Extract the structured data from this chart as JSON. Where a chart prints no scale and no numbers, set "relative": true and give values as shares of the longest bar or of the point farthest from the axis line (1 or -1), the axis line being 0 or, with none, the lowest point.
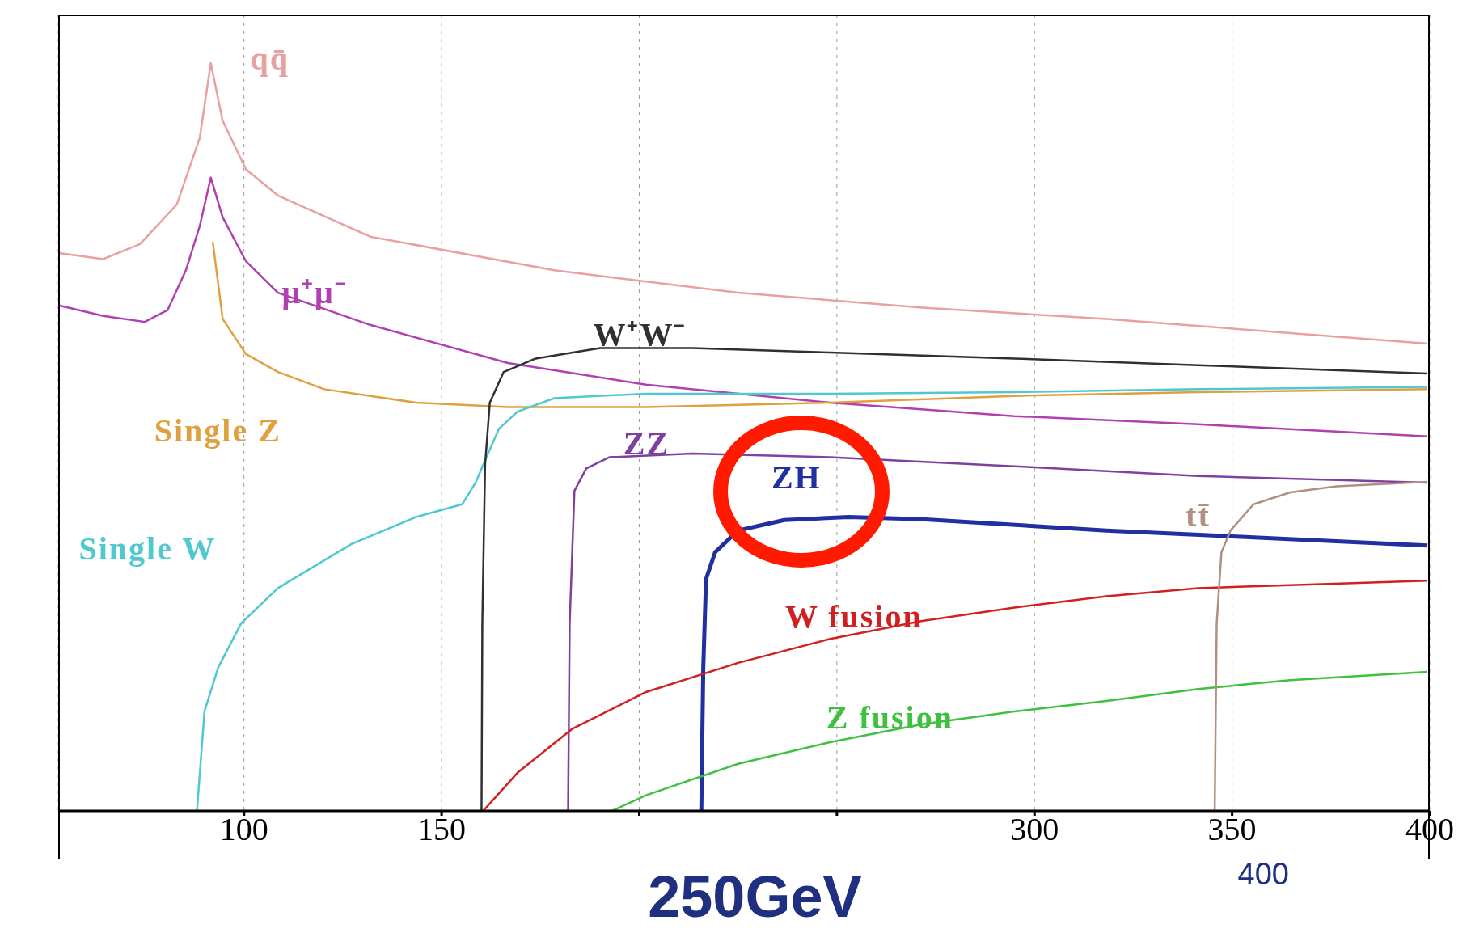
{
  "chart_data": {
    "type": "line",
    "relative": true,
    "legend": false,
    "marker": "none",
    "grid": "x",
    "xlim": [
      53,
      400
    ],
    "xticks": [
      100,
      150,
      {
        "value": 200,
        "label": null
      },
      {
        "value": 250,
        "label": null
      },
      300,
      350,
      400
    ],
    "annotations": [
      "250GeV",
      "400"
    ],
    "series": [
      {
        "name": "qq̄",
        "color": "#e8a0a0",
        "x": [
          53.2,
          64.4,
          73.7,
          83.0,
          88.8,
          91.6,
          94.6,
          100.5,
          108.6,
          131.9,
          178.5,
          225.0,
          271.6,
          318.2,
          399.4
        ],
        "values": [
          0.746,
          0.738,
          0.758,
          0.811,
          0.9,
          1,
          0.923,
          0.858,
          0.823,
          0.768,
          0.723,
          0.693,
          0.673,
          0.658,
          0.625
        ]
      },
      {
        "name": "μ⁺μ⁻",
        "color": "#b040b0",
        "x": [
          53.2,
          64.4,
          74.9,
          80.7,
          85.3,
          88.8,
          91.6,
          94.6,
          100.5,
          108.6,
          131.9,
          166.8,
          201.7,
          248.3,
          294.9,
          341.4,
          399.4
        ],
        "values": [
          0.676,
          0.662,
          0.654,
          0.67,
          0.723,
          0.782,
          0.847,
          0.794,
          0.735,
          0.693,
          0.65,
          0.599,
          0.57,
          0.546,
          0.528,
          0.517,
          0.501
        ]
      },
      {
        "name": "Single Z",
        "color": "#e0a040",
        "x": [
          92.1,
          94.6,
          100.5,
          108.6,
          120.3,
          143.5,
          166.8,
          201.7,
          248.3,
          294.9,
          341.4,
          399.4
        ],
        "values": [
          0.761,
          0.658,
          0.611,
          0.587,
          0.564,
          0.546,
          0.54,
          0.54,
          0.546,
          0.555,
          0.56,
          0.564
        ]
      },
      {
        "name": "Single W",
        "color": "#50c8d0",
        "x": [
          88.1,
          90.0,
          93.5,
          99.3,
          108.6,
          127.2,
          143.5,
          155.2,
          158.7,
          161.0,
          164.5,
          169.2,
          178.5,
          201.7,
          248.3,
          294.9,
          341.4,
          399.4
        ],
        "values": [
          0,
          0.133,
          0.192,
          0.251,
          0.298,
          0.357,
          0.393,
          0.41,
          0.44,
          0.469,
          0.511,
          0.534,
          0.552,
          0.558,
          0.558,
          0.56,
          0.564,
          0.567
        ]
      },
      {
        "name": "W⁺W⁻",
        "color": "#303030",
        "x": [
          160.1,
          160.3,
          161.0,
          162.2,
          165.7,
          173.8,
          190.1,
          213.4,
          248.3,
          294.9,
          341.4,
          399.4
        ],
        "values": [
          0,
          0.251,
          0.463,
          0.546,
          0.587,
          0.605,
          0.619,
          0.619,
          0.613,
          0.605,
          0.596,
          0.585
        ]
      },
      {
        "name": "ZZ",
        "color": "#8040a0",
        "x": [
          182.0,
          182.4,
          183.6,
          186.6,
          192.4,
          213.4,
          248.3,
          294.9,
          341.4,
          399.4
        ],
        "values": [
          0,
          0.251,
          0.428,
          0.458,
          0.473,
          0.478,
          0.473,
          0.461,
          0.448,
          0.439
        ]
      },
      {
        "name": "ZH",
        "color": "#2030a0",
        "x": [
          215.7,
          216.2,
          216.9,
          219.2,
          225.0,
          236.7,
          253.0,
          271.6,
          318.2,
          399.4
        ],
        "values": [
          0,
          0.192,
          0.31,
          0.346,
          0.375,
          0.389,
          0.393,
          0.39,
          0.375,
          0.355
        ]
      },
      {
        "name": "W fusion",
        "color": "#d02020",
        "x": [
          160.5,
          169.2,
          183.1,
          201.7,
          225.0,
          248.3,
          271.6,
          294.9,
          318.2,
          341.4,
          364.7,
          399.4
        ],
        "values": [
          0,
          0.051,
          0.11,
          0.159,
          0.198,
          0.23,
          0.254,
          0.272,
          0.287,
          0.298,
          0.302,
          0.308
        ]
      },
      {
        "name": "Z fusion",
        "color": "#40c040",
        "x": [
          193.1,
          201.7,
          225.0,
          248.3,
          271.6,
          294.9,
          318.2,
          341.4,
          364.7,
          399.4
        ],
        "values": [
          0,
          0.021,
          0.063,
          0.092,
          0.116,
          0.133,
          0.147,
          0.163,
          0.175,
          0.186
        ]
      },
      {
        "name": "tt̄",
        "color": "#b09080",
        "x": [
          345.6,
          346.1,
          347.3,
          349.6,
          355.4,
          364.7,
          376.4,
          399.4
        ],
        "values": [
          0,
          0.251,
          0.346,
          0.375,
          0.41,
          0.426,
          0.434,
          0.44
        ]
      }
    ]
  }
}
